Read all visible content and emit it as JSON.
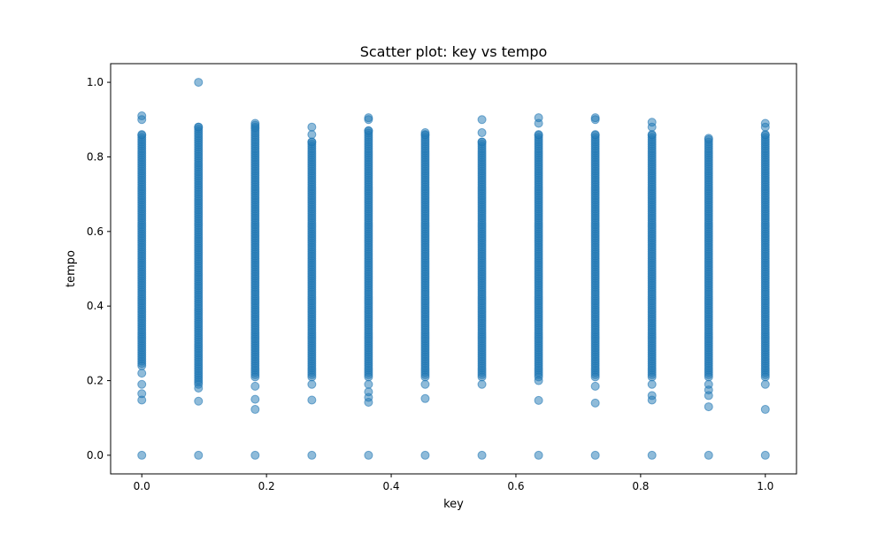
{
  "chart_data": {
    "type": "scatter",
    "title": "Scatter plot: key vs tempo",
    "xlabel": "key",
    "ylabel": "tempo",
    "xlim": [
      -0.05,
      1.05
    ],
    "ylim": [
      -0.05,
      1.05
    ],
    "xticks": [
      0.0,
      0.2,
      0.4,
      0.6,
      0.8,
      1.0
    ],
    "xtick_labels": [
      "0.0",
      "0.2",
      "0.4",
      "0.6",
      "0.8",
      "1.0"
    ],
    "yticks": [
      0.0,
      0.2,
      0.4,
      0.6,
      0.8,
      1.0
    ],
    "ytick_labels": [
      "0.0",
      "0.2",
      "0.4",
      "0.6",
      "0.8",
      "1.0"
    ],
    "grid": false,
    "legend": "none",
    "marker_color": "#1f77b4",
    "marker_alpha": 0.5,
    "point_groups": [
      {
        "key": 0.0,
        "dense_range": [
          0.24,
          0.86
        ],
        "outliers": [
          0.91,
          0.9,
          0.22,
          0.19,
          0.165,
          0.148,
          0.0
        ]
      },
      {
        "key": 0.0909,
        "dense_range": [
          0.19,
          0.88
        ],
        "outliers": [
          1.0,
          0.18,
          0.145,
          0.0
        ]
      },
      {
        "key": 0.1818,
        "dense_range": [
          0.21,
          0.88
        ],
        "outliers": [
          0.89,
          0.885,
          0.185,
          0.15,
          0.123,
          0.0
        ]
      },
      {
        "key": 0.2727,
        "dense_range": [
          0.21,
          0.84
        ],
        "outliers": [
          0.88,
          0.86,
          0.19,
          0.148,
          0.0
        ]
      },
      {
        "key": 0.3636,
        "dense_range": [
          0.21,
          0.87
        ],
        "outliers": [
          0.905,
          0.9,
          0.19,
          0.17,
          0.155,
          0.142,
          0.0
        ]
      },
      {
        "key": 0.4545,
        "dense_range": [
          0.21,
          0.86
        ],
        "outliers": [
          0.865,
          0.19,
          0.152,
          0.0
        ]
      },
      {
        "key": 0.5455,
        "dense_range": [
          0.21,
          0.84
        ],
        "outliers": [
          0.9,
          0.865,
          0.19,
          0.0
        ]
      },
      {
        "key": 0.6364,
        "dense_range": [
          0.21,
          0.86
        ],
        "outliers": [
          0.905,
          0.89,
          0.2,
          0.147,
          0.0
        ]
      },
      {
        "key": 0.7273,
        "dense_range": [
          0.21,
          0.86
        ],
        "outliers": [
          0.905,
          0.9,
          0.185,
          0.14,
          0.0
        ]
      },
      {
        "key": 0.8182,
        "dense_range": [
          0.21,
          0.86
        ],
        "outliers": [
          0.893,
          0.88,
          0.19,
          0.16,
          0.148,
          0.0
        ]
      },
      {
        "key": 0.9091,
        "dense_range": [
          0.21,
          0.85
        ],
        "outliers": [
          0.19,
          0.175,
          0.16,
          0.13,
          0.0
        ]
      },
      {
        "key": 1.0,
        "dense_range": [
          0.21,
          0.86
        ],
        "outliers": [
          0.89,
          0.88,
          0.19,
          0.123,
          0.0
        ]
      }
    ]
  }
}
